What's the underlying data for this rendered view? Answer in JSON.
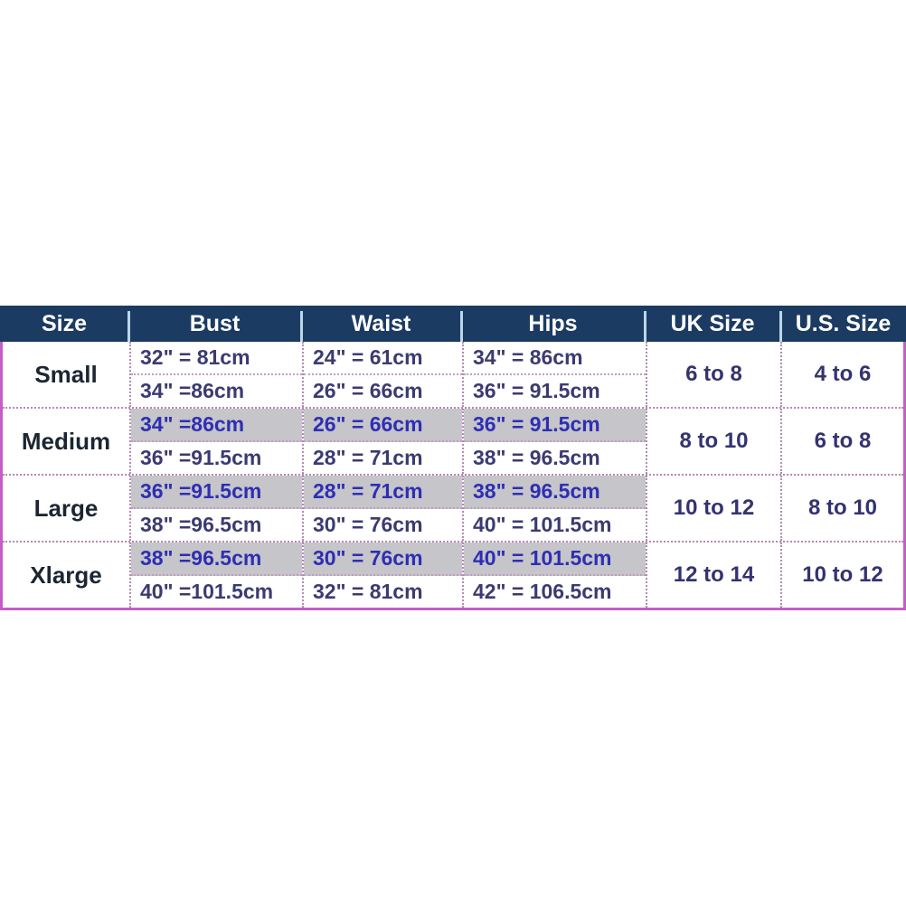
{
  "colors": {
    "header_bg": "#1c3b63",
    "header_text": "#ffffff",
    "header_divider": "#b9d7e6",
    "outer_border": "#c45ec4",
    "dotted_border": "#b48ab4",
    "size_label_text": "#1b2632",
    "measurement_text": "#3b3b72",
    "highlight_text": "#2e2eb4",
    "highlight_bg": "#c6c5c9",
    "size_range_text": "#333370"
  },
  "header": {
    "size": "Size",
    "bust": "Bust",
    "waist": "Waist",
    "hips": "Hips",
    "uk": "UK Size",
    "us": "U.S. Size"
  },
  "rows": [
    {
      "size": "Small",
      "bust": [
        "32\" = 81cm",
        "34\" =86cm"
      ],
      "waist": [
        "24\" = 61cm",
        "26\" = 66cm"
      ],
      "hips": [
        "34\" = 86cm",
        "36\" = 91.5cm"
      ],
      "uk": "6 to 8",
      "us": "4 to 6",
      "first_line_highlighted": false
    },
    {
      "size": "Medium",
      "bust": [
        "34\" =86cm",
        "36\" =91.5cm"
      ],
      "waist": [
        "26\" = 66cm",
        "28\"  = 71cm"
      ],
      "hips": [
        "36\" = 91.5cm",
        "38\" = 96.5cm"
      ],
      "uk": "8 to 10",
      "us": "6 to 8",
      "first_line_highlighted": true
    },
    {
      "size": "Large",
      "bust": [
        "36\" =91.5cm",
        "38\" =96.5cm"
      ],
      "waist": [
        "28\" = 71cm",
        "30\" = 76cm"
      ],
      "hips": [
        "38\" = 96.5cm",
        "40\" = 101.5cm"
      ],
      "uk": "10 to 12",
      "us": "8 to 10",
      "first_line_highlighted": true
    },
    {
      "size": "Xlarge",
      "bust": [
        "38\" =96.5cm",
        "40\" =101.5cm"
      ],
      "waist": [
        "30\" = 76cm",
        "32\" = 81cm"
      ],
      "hips": [
        "40\" = 101.5cm",
        "42\" = 106.5cm"
      ],
      "uk": "12 to 14",
      "us": "10 to 12",
      "first_line_highlighted": true
    }
  ]
}
